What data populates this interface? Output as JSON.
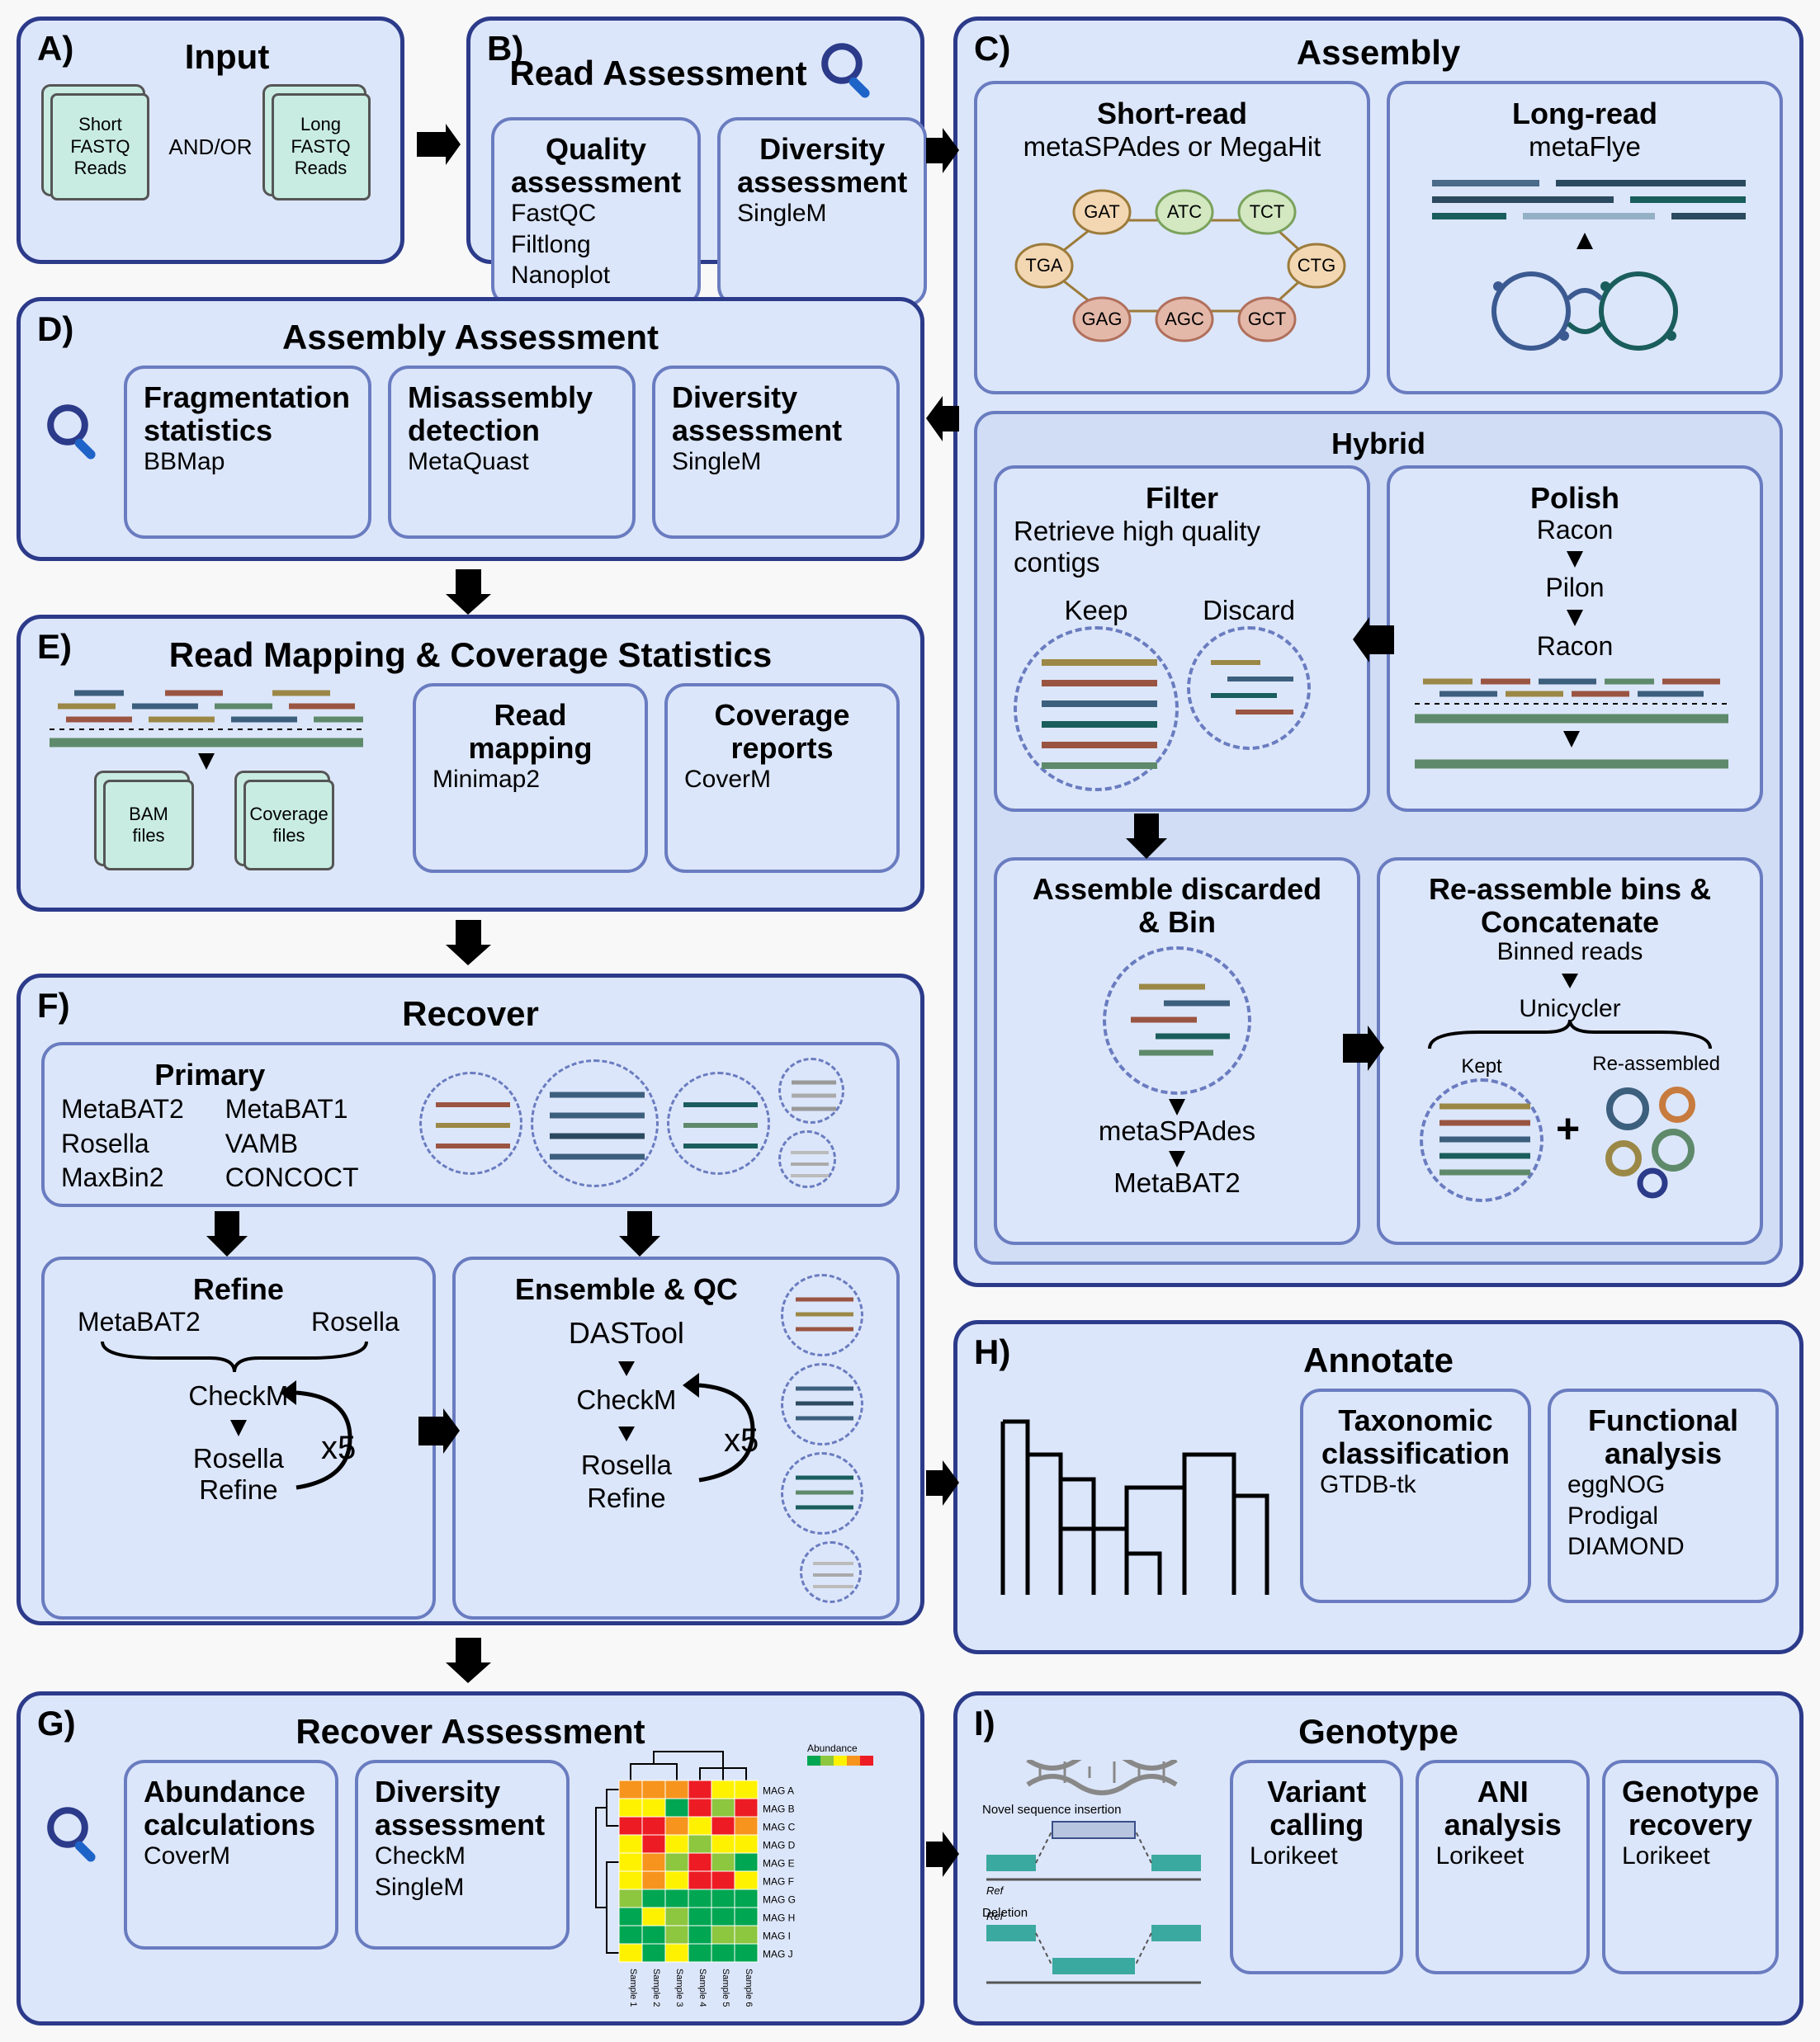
{
  "colors": {
    "panel_bg": "#dce6fa",
    "panel_border": "#2c3a8a",
    "sub_border": "#6a7cc0",
    "file_bg": "#c9ece2",
    "accent": "#1e64c8",
    "read_colors": [
      "#9b8846",
      "#5e8a6b",
      "#9a5542",
      "#3c5f7d",
      "#c77b3e"
    ],
    "heatmap_palette": [
      "#00a651",
      "#8dc63f",
      "#fff200",
      "#f7941d",
      "#ed1c24"
    ]
  },
  "A": {
    "letter": "A)",
    "title": "Input",
    "file1": [
      "Short",
      "FASTQ",
      "Reads"
    ],
    "conj": "AND/OR",
    "file2": [
      "Long",
      "FASTQ",
      "Reads"
    ]
  },
  "B": {
    "letter": "B)",
    "title": "Read Assessment",
    "sub1": {
      "title": "Quality assessment",
      "tools": [
        "FastQC",
        "Filtlong",
        "Nanoplot"
      ]
    },
    "sub2": {
      "title": "Diversity assessment",
      "tools": [
        "SingleM"
      ]
    }
  },
  "C": {
    "letter": "C)",
    "title": "Assembly",
    "short": {
      "title": "Short-read",
      "tools_line": "metaSPAdes or MegaHit",
      "nodes": {
        "TGA": "TGA",
        "GAT": "GAT",
        "ATC": "ATC",
        "TCT": "TCT",
        "CTG": "CTG",
        "GCT": "GCT",
        "AGC": "AGC",
        "GAG": "GAG"
      },
      "node_colors": {
        "TGA": "#f3d7b3",
        "GAT": "#f3d7b3",
        "ATC": "#d3e8c1",
        "TCT": "#d3e8c1",
        "CTG": "#f3d7b3",
        "GCT": "#e4b8a9",
        "AGC": "#e4b8a9",
        "GAG": "#e4b8a9"
      }
    },
    "long": {
      "title": "Long-read",
      "tool": "metaFlye"
    },
    "hybrid": {
      "title": "Hybrid",
      "filter": {
        "title": "Filter",
        "desc": "Retrieve high quality contigs",
        "keep": "Keep",
        "discard": "Discard"
      },
      "polish": {
        "title": "Polish",
        "steps": [
          "Racon",
          "Pilon",
          "Racon"
        ]
      },
      "assemble": {
        "title": "Assemble discarded & Bin",
        "steps": [
          "metaSPAdes",
          "MetaBAT2"
        ]
      },
      "reassemble": {
        "title": "Re-assemble bins & Concatenate",
        "top": "Binned reads",
        "tool": "Unicycler",
        "kept": "Kept",
        "re": "Re-assembled"
      }
    }
  },
  "D": {
    "letter": "D)",
    "title": "Assembly Assessment",
    "sub1": {
      "title": "Fragmentation statistics",
      "tools": [
        "BBMap"
      ]
    },
    "sub2": {
      "title": "Misassembly detection",
      "tools": [
        "MetaQuast"
      ]
    },
    "sub3": {
      "title": "Diversity assessment",
      "tools": [
        "SingleM"
      ]
    }
  },
  "E": {
    "letter": "E)",
    "title": "Read Mapping & Coverage Statistics",
    "file1": [
      "BAM",
      "files"
    ],
    "file2": [
      "Coverage",
      "files"
    ],
    "sub1": {
      "title": "Read mapping",
      "tools": [
        "Minimap2"
      ]
    },
    "sub2": {
      "title": "Coverage reports",
      "tools": [
        "CoverM"
      ]
    }
  },
  "F": {
    "letter": "F)",
    "title": "Recover",
    "primary": {
      "title": "Primary",
      "col1": [
        "MetaBAT2",
        "Rosella",
        "MaxBin2"
      ],
      "col2": [
        "MetaBAT1",
        "VAMB",
        "CONCOCT"
      ]
    },
    "refine": {
      "title": "Refine",
      "top": [
        "MetaBAT2",
        "Rosella"
      ],
      "steps": [
        "CheckM",
        "Rosella",
        "Refine"
      ],
      "loop": "x5"
    },
    "ensemble": {
      "title": "Ensemble & QC",
      "steps": [
        "DASTool",
        "CheckM",
        "Rosella",
        "Refine"
      ],
      "loop": "x5"
    }
  },
  "G": {
    "letter": "G)",
    "title": "Recover Assessment",
    "sub1": {
      "title": "Abundance calculations",
      "tools": [
        "CoverM"
      ]
    },
    "sub2": {
      "title": "Diversity assessment",
      "tools": [
        "CheckM",
        "SingleM"
      ]
    },
    "legend": "Abundance",
    "row_labels": [
      "MAG A",
      "MAG B",
      "MAG C",
      "MAG D",
      "MAG E",
      "MAG F",
      "MAG G",
      "MAG H",
      "MAG I",
      "MAG J"
    ],
    "col_labels": [
      "Sample 1",
      "Sample 2",
      "Sample 3",
      "Sample 4",
      "Sample 5",
      "Sample 6"
    ],
    "heatmap": [
      [
        3,
        3,
        3,
        4,
        2,
        2
      ],
      [
        2,
        2,
        0,
        4,
        1,
        4
      ],
      [
        4,
        4,
        3,
        2,
        4,
        3
      ],
      [
        2,
        4,
        2,
        1,
        2,
        2
      ],
      [
        2,
        3,
        1,
        4,
        1,
        0
      ],
      [
        2,
        3,
        2,
        4,
        4,
        2
      ],
      [
        1,
        0,
        0,
        0,
        0,
        0
      ],
      [
        0,
        2,
        1,
        0,
        0,
        0
      ],
      [
        0,
        0,
        1,
        0,
        1,
        1
      ],
      [
        2,
        0,
        2,
        0,
        0,
        0
      ]
    ]
  },
  "H": {
    "letter": "H)",
    "title": "Annotate",
    "sub1": {
      "title": "Taxonomic classification",
      "tools": [
        "GTDB-tk"
      ]
    },
    "sub2": {
      "title": "Functional analysis",
      "tools": [
        "eggNOG",
        "Prodigal",
        "DIAMOND"
      ]
    }
  },
  "I": {
    "letter": "I)",
    "title": "Genotype",
    "diagram": {
      "ins": "Novel sequence insertion",
      "del": "Deletion",
      "ref": "Ref",
      "novel": "Novel"
    },
    "sub1": {
      "title": "Variant calling",
      "tools": [
        "Lorikeet"
      ]
    },
    "sub2": {
      "title": "ANI analysis",
      "tools": [
        "Lorikeet"
      ]
    },
    "sub3": {
      "title": "Genotype recovery",
      "tools": [
        "Lorikeet"
      ]
    }
  }
}
